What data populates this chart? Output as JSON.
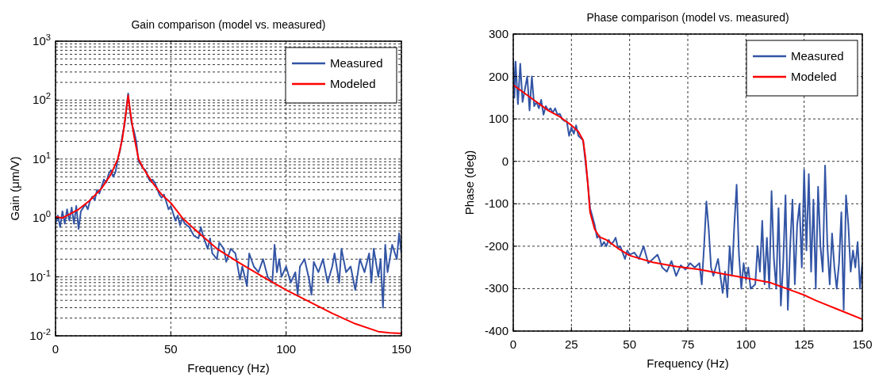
{
  "chart_data": [
    {
      "type": "line",
      "title": "Gain comparison (model vs. measured)",
      "xlabel": "Frequency (Hz)",
      "ylabel": "Gain (μm/V)",
      "log": "y",
      "grid": true,
      "legend": "top right",
      "xlim": [
        0,
        150
      ],
      "xticks": [
        0,
        50,
        100,
        150
      ],
      "ylim": [
        0.01,
        1000
      ],
      "yticks": [
        {
          "value": 0.01,
          "label": "10$^{-2}$"
        },
        {
          "value": 0.1,
          "label": "10$^{-1}$"
        },
        {
          "value": 1,
          "label": "10$^{0}$"
        },
        {
          "value": 10,
          "label": "10$^{1}$"
        },
        {
          "value": 100,
          "label": "10$^{2}$"
        },
        {
          "value": 1000,
          "label": "10$^{3}$"
        }
      ],
      "series": [
        {
          "name": "Measured",
          "color": "#3355a5",
          "x": [
            0,
            1,
            2,
            3,
            4,
            5,
            6,
            7,
            8,
            9,
            10,
            11,
            12,
            13,
            14,
            15,
            16,
            17,
            18,
            19,
            20,
            21,
            22,
            23,
            24,
            25,
            26,
            27,
            28,
            29,
            30,
            31,
            31.5,
            32,
            33,
            34,
            35,
            36,
            37,
            38,
            39,
            40,
            41,
            42,
            43,
            44,
            45,
            46,
            47,
            48,
            49,
            50,
            51,
            52,
            53,
            54,
            55,
            56,
            58,
            60,
            62,
            63,
            64,
            66,
            67,
            68,
            70,
            71,
            73,
            74,
            76,
            78,
            80,
            81,
            83,
            84,
            86,
            88,
            90,
            92,
            94,
            95,
            96,
            97,
            98,
            100,
            102,
            104,
            105,
            106,
            108,
            110,
            111,
            112,
            114,
            116,
            118,
            120,
            121,
            123,
            124,
            126,
            128,
            130,
            132,
            134,
            136,
            137,
            138,
            140,
            141,
            142,
            143,
            144,
            146,
            148,
            149,
            150
          ],
          "values": [
            0.8,
            1.1,
            0.7,
            1.3,
            0.8,
            1.4,
            0.9,
            1.5,
            0.8,
            1.6,
            0.65,
            1.3,
            1.5,
            1.7,
            1.4,
            2,
            2.3,
            2,
            3,
            2.6,
            3.4,
            4.5,
            4,
            5.5,
            6.5,
            5,
            6,
            10,
            14,
            25,
            40,
            90,
            130,
            80,
            40,
            30,
            20,
            9,
            8,
            7,
            6.5,
            5,
            4.2,
            4.5,
            4,
            3.2,
            2.5,
            2.2,
            2.5,
            1.9,
            1.4,
            1.6,
            1.2,
            0.9,
            1.1,
            0.75,
            1,
            0.8,
            0.7,
            0.5,
            0.45,
            0.7,
            0.5,
            0.3,
            0.45,
            0.25,
            0.2,
            0.38,
            0.3,
            0.18,
            0.3,
            0.25,
            0.09,
            0.15,
            0.07,
            0.25,
            0.15,
            0.12,
            0.2,
            0.1,
            0.08,
            0.35,
            0.12,
            0.2,
            0.1,
            0.15,
            0.08,
            0.12,
            0.05,
            0.15,
            0.2,
            0.09,
            0.05,
            0.18,
            0.12,
            0.2,
            0.08,
            0.15,
            0.25,
            0.08,
            0.3,
            0.12,
            0.15,
            0.06,
            0.2,
            0.12,
            0.25,
            0.08,
            0.3,
            0.1,
            0.2,
            0.03,
            0.35,
            0.12,
            0.35,
            0.2,
            0.55,
            0.25
          ]
        },
        {
          "name": "Modeled",
          "color": "#ff0000",
          "x": [
            0,
            3,
            6,
            10,
            15,
            20,
            24,
            27,
            29,
            30.5,
            31.5,
            32.5,
            34,
            36,
            38,
            42,
            46,
            50,
            55,
            60,
            70,
            80,
            90,
            100,
            110,
            120,
            130,
            140,
            145,
            150
          ],
          "values": [
            1.05,
            1,
            1.15,
            1.4,
            2,
            3.2,
            5.5,
            10,
            22,
            60,
            120,
            60,
            25,
            10,
            7,
            4,
            2.5,
            1.8,
            1,
            0.66,
            0.3,
            0.17,
            0.1,
            0.06,
            0.038,
            0.024,
            0.016,
            0.0118,
            0.0112,
            0.011
          ]
        }
      ]
    },
    {
      "type": "line",
      "title": "Phase comparison (model vs. measured)",
      "xlabel": "Frequency (Hz)",
      "ylabel": "Phase (deg)",
      "grid": true,
      "legend": "top right",
      "xlim": [
        0,
        150
      ],
      "xticks": [
        0,
        25,
        50,
        75,
        100,
        125,
        150
      ],
      "ylim": [
        -400,
        300
      ],
      "yticks": [
        -400,
        -300,
        -200,
        -100,
        0,
        100,
        200,
        300
      ],
      "series": [
        {
          "name": "Measured",
          "color": "#3355a5",
          "x": [
            0,
            0.5,
            1,
            2,
            3,
            4,
            5,
            6,
            7,
            8,
            9,
            10,
            11,
            12,
            13,
            14,
            15,
            16,
            17,
            18,
            19,
            20,
            21,
            22,
            23,
            24,
            25,
            26,
            27,
            28,
            29,
            30,
            31,
            32,
            33,
            34,
            35,
            36,
            37,
            38,
            39,
            40,
            41,
            42,
            43,
            44,
            45,
            46,
            47,
            48,
            49,
            50,
            52,
            54,
            56,
            57,
            58,
            60,
            62,
            64,
            66,
            68,
            70,
            72,
            74,
            76,
            78,
            80,
            81,
            82,
            83,
            84,
            85,
            86,
            88,
            90,
            91,
            92,
            93,
            94,
            95,
            96,
            97,
            98,
            99,
            100,
            101,
            102,
            104,
            105,
            106,
            107,
            108,
            109,
            110,
            111,
            112,
            113,
            114,
            115,
            116,
            117,
            118,
            119,
            120,
            121,
            122,
            123,
            124,
            125,
            126,
            127,
            128,
            129,
            130,
            131,
            132,
            133,
            134,
            135,
            136,
            137,
            138,
            139,
            140,
            141,
            142,
            143,
            144,
            145,
            146,
            147,
            148,
            149,
            150
          ],
          "values": [
            240,
            150,
            235,
            135,
            230,
            140,
            170,
            200,
            120,
            200,
            130,
            140,
            125,
            145,
            110,
            130,
            120,
            125,
            115,
            125,
            110,
            112,
            100,
            95,
            95,
            60,
            80,
            65,
            85,
            60,
            55,
            50,
            0,
            -50,
            -110,
            -130,
            -150,
            -180,
            -175,
            -200,
            -190,
            -200,
            -185,
            -195,
            -190,
            -180,
            -205,
            -200,
            -215,
            -230,
            -210,
            -220,
            -215,
            -230,
            -200,
            -220,
            -240,
            -230,
            -220,
            -250,
            -260,
            -235,
            -270,
            -245,
            -255,
            -240,
            -250,
            -240,
            -290,
            -200,
            -95,
            -160,
            -250,
            -270,
            -230,
            -310,
            -260,
            -320,
            -200,
            -270,
            -150,
            -55,
            -220,
            -300,
            -240,
            -280,
            -250,
            -300,
            -290,
            -200,
            -260,
            -140,
            -290,
            -180,
            -300,
            -70,
            -230,
            -300,
            -110,
            -340,
            -240,
            -80,
            -350,
            -200,
            -90,
            -290,
            -150,
            -100,
            -250,
            -20,
            -210,
            -30,
            -260,
            -90,
            -300,
            -60,
            -200,
            -260,
            -10,
            -200,
            -290,
            -170,
            -250,
            -300,
            -240,
            -120,
            -350,
            -80,
            -150,
            -260,
            -210,
            -250,
            -190,
            -300,
            -240
          ]
        },
        {
          "name": "Modeled",
          "color": "#ff0000",
          "x": [
            0,
            5,
            10,
            15,
            20,
            25,
            28,
            30,
            31,
            32,
            33,
            35,
            37,
            40,
            45,
            50,
            60,
            70,
            80,
            90,
            100,
            110,
            115,
            120,
            125,
            130,
            140,
            150
          ],
          "values": [
            180,
            160,
            140,
            120,
            105,
            85,
            70,
            50,
            10,
            -50,
            -120,
            -160,
            -178,
            -185,
            -205,
            -222,
            -238,
            -248,
            -255,
            -265,
            -275,
            -285,
            -295,
            -305,
            -315,
            -328,
            -350,
            -372
          ]
        }
      ]
    }
  ]
}
